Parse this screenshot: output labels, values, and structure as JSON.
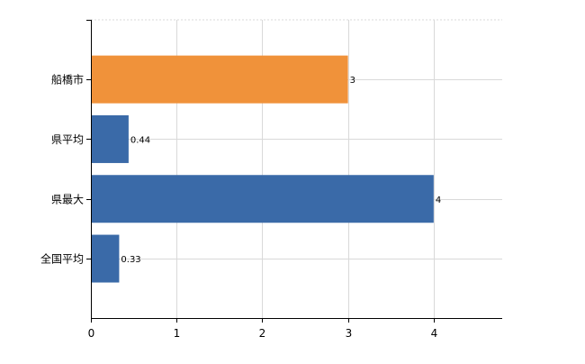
{
  "chart_data": {
    "type": "bar",
    "orientation": "horizontal",
    "categories": [
      "船橋市",
      "県平均",
      "県最大",
      "全国平均"
    ],
    "values": [
      3,
      0.44,
      4,
      0.33
    ],
    "value_labels": [
      "3",
      "0.44",
      "4",
      "0.33"
    ],
    "bar_colors": [
      "#f0923a",
      "#3a6aa8",
      "#3a6aa8",
      "#3a6aa8"
    ],
    "title": "",
    "xlabel": "",
    "ylabel": "",
    "xlim": [
      0,
      4.8
    ],
    "x_ticks": [
      0,
      1,
      2,
      3,
      4
    ],
    "grid": true,
    "legend": "none"
  },
  "colors": {
    "highlight": "#f0923a",
    "default_bar": "#3a6aa8",
    "grid": "#d9d9d9",
    "axis": "#000000"
  }
}
